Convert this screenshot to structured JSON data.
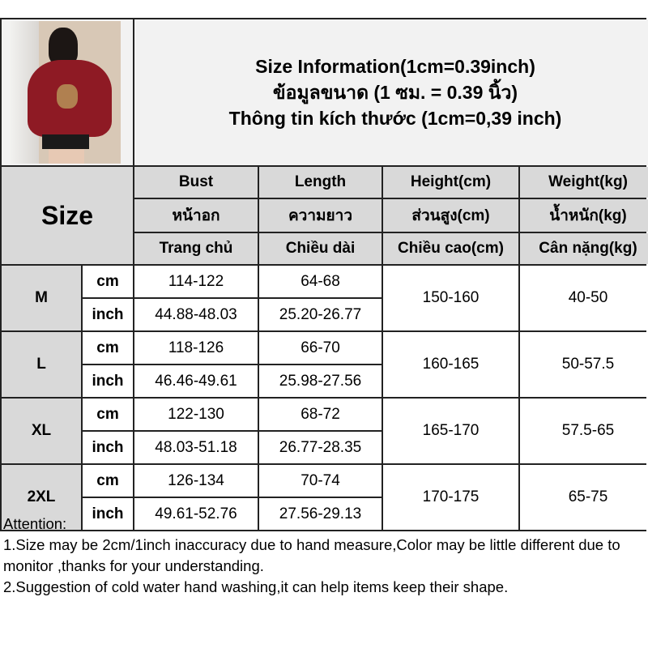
{
  "title": {
    "line1": "Size Information(1cm=0.39inch)",
    "line2": "ข้อมูลขนาด (1 ซม. = 0.39 นิ้ว)",
    "line3": "Thông tin kích thước (1cm=0,39 inch)"
  },
  "header": {
    "size": "Size",
    "rows": [
      [
        "Bust",
        "Length",
        "Height(cm)",
        "Weight(kg)"
      ],
      [
        "หน้าอก",
        "ความยาว",
        "ส่วนสูง(cm)",
        "น้ำหนัก(kg)"
      ],
      [
        "Trang chủ",
        "Chiều dài",
        "Chiều cao(cm)",
        "Cân nặng(kg)"
      ]
    ]
  },
  "sizes": [
    {
      "size": "M",
      "cm": {
        "unit": "cm",
        "bust": "114-122",
        "length": "64-68"
      },
      "inch": {
        "unit": "inch",
        "bust": "44.88-48.03",
        "length": "25.20-26.77"
      },
      "height": "150-160",
      "weight": "40-50"
    },
    {
      "size": "L",
      "cm": {
        "unit": "cm",
        "bust": "118-126",
        "length": "66-70"
      },
      "inch": {
        "unit": "inch",
        "bust": "46.46-49.61",
        "length": "25.98-27.56"
      },
      "height": "160-165",
      "weight": "50-57.5"
    },
    {
      "size": "XL",
      "cm": {
        "unit": "cm",
        "bust": "122-130",
        "length": "68-72"
      },
      "inch": {
        "unit": "inch",
        "bust": "48.03-51.18",
        "length": "26.77-28.35"
      },
      "height": "165-170",
      "weight": "57.5-65"
    },
    {
      "size": "2XL",
      "cm": {
        "unit": "cm",
        "bust": "126-134",
        "length": "70-74"
      },
      "inch": {
        "unit": "inch",
        "bust": "49.61-52.76",
        "length": "27.56-29.13"
      },
      "height": "170-175",
      "weight": "65-75"
    }
  ],
  "notes": {
    "heading": "Attention:",
    "n1": "1.Size may be 2cm/1inch inaccuracy due to hand measure,Color may be little different due to monitor ,thanks for your understanding.",
    "n2": "2.Suggestion of cold water hand washing,it can help items keep their shape."
  },
  "colors": {
    "header_bg": "#d9d9d9",
    "title_bg": "#f2f2f2",
    "border": "#222222"
  }
}
